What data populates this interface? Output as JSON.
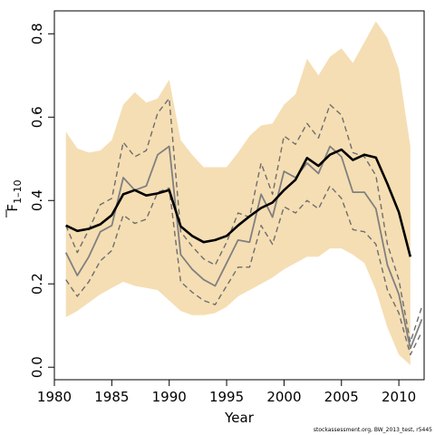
{
  "chart_data": {
    "type": "line",
    "xlabel": "Year",
    "ylabel": "F",
    "ylabel_subscript": "1–10",
    "xlim": [
      1980,
      2012.2
    ],
    "ylim": [
      -0.03,
      0.855
    ],
    "x_ticks": [
      1980,
      1985,
      1990,
      1995,
      2000,
      2005,
      2010
    ],
    "y_ticks": [
      0.0,
      0.2,
      0.4,
      0.6,
      0.8
    ],
    "x_tick_labels": [
      "1980",
      "1985",
      "1990",
      "1995",
      "2000",
      "2005",
      "2010"
    ],
    "y_tick_labels": [
      "0.0",
      "0.2",
      "0.4",
      "0.6",
      "0.8"
    ],
    "grid": false,
    "colors": {
      "band": "#f5deb3",
      "median": "#000000",
      "quantile": "#808080",
      "dashed": "#6e6e6e"
    },
    "band": {
      "x": [
        1981,
        1982,
        1983,
        1984,
        1985,
        1986,
        1987,
        1988,
        1989,
        1990,
        1991,
        1992,
        1993,
        1994,
        1995,
        1996,
        1997,
        1998,
        1999,
        2000,
        2001,
        2002,
        2003,
        2004,
        2005,
        2006,
        2007,
        2008,
        2009,
        2010,
        2011
      ],
      "upper": [
        0.565,
        0.525,
        0.515,
        0.52,
        0.545,
        0.63,
        0.66,
        0.635,
        0.645,
        0.69,
        0.545,
        0.51,
        0.48,
        0.48,
        0.48,
        0.515,
        0.555,
        0.58,
        0.585,
        0.63,
        0.655,
        0.74,
        0.7,
        0.745,
        0.765,
        0.73,
        0.78,
        0.83,
        0.79,
        0.715,
        0.53
      ],
      "lower": [
        0.12,
        0.135,
        0.155,
        0.175,
        0.19,
        0.205,
        0.195,
        0.19,
        0.185,
        0.16,
        0.135,
        0.125,
        0.125,
        0.13,
        0.145,
        0.17,
        0.185,
        0.2,
        0.215,
        0.235,
        0.25,
        0.265,
        0.265,
        0.285,
        0.285,
        0.27,
        0.25,
        0.185,
        0.095,
        0.03,
        0.005
      ]
    },
    "series": [
      {
        "style": "solid-thick",
        "x": [
          1981,
          1982,
          1983,
          1984,
          1985,
          1986,
          1987,
          1988,
          1989,
          1990,
          1991,
          1992,
          1993,
          1994,
          1995,
          1996,
          1997,
          1998,
          1999,
          2000,
          2001,
          2002,
          2003,
          2004,
          2005,
          2006,
          2007,
          2008,
          2009,
          2010,
          2011
        ],
        "values": [
          0.34,
          0.327,
          0.332,
          0.343,
          0.365,
          0.415,
          0.425,
          0.412,
          0.417,
          0.425,
          0.338,
          0.315,
          0.3,
          0.305,
          0.315,
          0.34,
          0.362,
          0.382,
          0.395,
          0.425,
          0.45,
          0.502,
          0.483,
          0.51,
          0.522,
          0.497,
          0.51,
          0.503,
          0.44,
          0.372,
          0.265
        ]
      },
      {
        "style": "solid-thin",
        "x": [
          1981,
          1982,
          1983,
          1984,
          1985,
          1986,
          1987,
          1988,
          1989,
          1990,
          1991,
          1992,
          1993,
          1994,
          1995,
          1996,
          1997,
          1998,
          1999,
          2000,
          2001,
          2002,
          2003,
          2004,
          2005,
          2006,
          2007,
          2008,
          2009,
          2010,
          2011,
          2012
        ],
        "values": [
          0.275,
          0.22,
          0.265,
          0.325,
          0.34,
          0.455,
          0.425,
          0.435,
          0.51,
          0.53,
          0.27,
          0.235,
          0.21,
          0.195,
          0.25,
          0.305,
          0.3,
          0.415,
          0.36,
          0.47,
          0.455,
          0.49,
          0.465,
          0.53,
          0.505,
          0.42,
          0.42,
          0.38,
          0.245,
          0.175,
          0.045,
          0.115
        ]
      },
      {
        "style": "dashed",
        "x": [
          1981,
          1982,
          1983,
          1984,
          1985,
          1986,
          1987,
          1988,
          1989,
          1990,
          1991,
          1992,
          1993,
          1994,
          1995,
          1996,
          1997,
          1998,
          1999,
          2000,
          2001,
          2002,
          2003,
          2004,
          2005,
          2006,
          2007,
          2008,
          2009,
          2010,
          2011,
          2012
        ],
        "values": [
          0.34,
          0.275,
          0.33,
          0.39,
          0.405,
          0.54,
          0.505,
          0.52,
          0.61,
          0.645,
          0.325,
          0.29,
          0.26,
          0.245,
          0.3,
          0.37,
          0.36,
          0.49,
          0.415,
          0.555,
          0.535,
          0.585,
          0.55,
          0.63,
          0.605,
          0.515,
          0.505,
          0.46,
          0.295,
          0.21,
          0.06,
          0.145
        ]
      },
      {
        "style": "dashed",
        "x": [
          1981,
          1982,
          1983,
          1984,
          1985,
          1986,
          1987,
          1988,
          1989,
          1990,
          1991,
          1992,
          1993,
          1994,
          1995,
          1996,
          1997,
          1998,
          1999,
          2000,
          2001,
          2002,
          2003,
          2004,
          2005,
          2006,
          2007,
          2008,
          2009,
          2010,
          2011,
          2012
        ],
        "values": [
          0.21,
          0.17,
          0.205,
          0.255,
          0.28,
          0.365,
          0.345,
          0.355,
          0.42,
          0.43,
          0.205,
          0.18,
          0.16,
          0.15,
          0.195,
          0.24,
          0.24,
          0.34,
          0.295,
          0.385,
          0.37,
          0.4,
          0.38,
          0.435,
          0.405,
          0.33,
          0.325,
          0.295,
          0.185,
          0.13,
          0.03,
          0.085
        ]
      }
    ]
  },
  "footer": "stockassessment.org, BW_2013_test, r5445"
}
